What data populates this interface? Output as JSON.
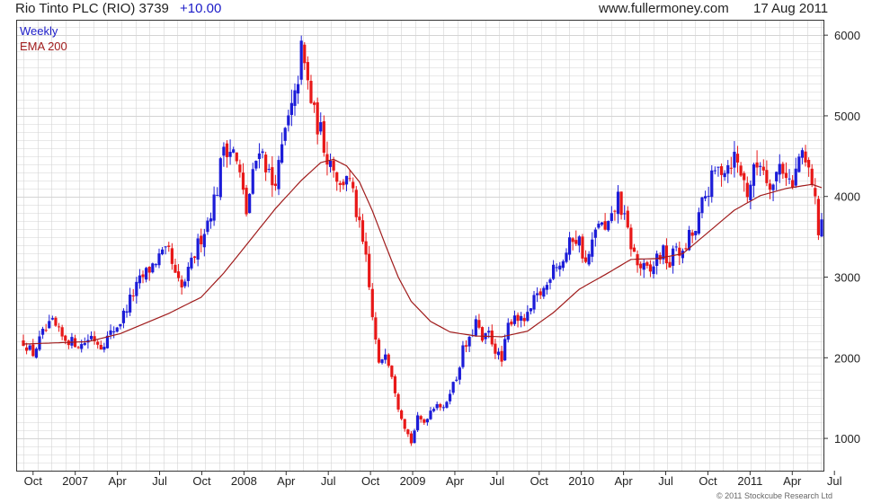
{
  "header": {
    "title": "Rio Tinto PLC (RIO) 3739",
    "change": "+10.00",
    "site": "www.fullermoney.com",
    "date": "17 Aug 2011"
  },
  "legend": {
    "weekly": "Weekly",
    "ema": "EMA 200"
  },
  "copyright": "© 2011 Stockcube Research Ltd",
  "colors": {
    "up": "#1c1cd8",
    "down": "#e81818",
    "ema": "#a01c1c",
    "grid": "#d4d4d4",
    "axis": "#333333"
  },
  "chart_data": {
    "type": "candlestick",
    "title": "Rio Tinto PLC (RIO) 3739",
    "series": [
      {
        "name": "Weekly",
        "kind": "candlestick"
      },
      {
        "name": "EMA 200",
        "kind": "line"
      }
    ],
    "y_ticks": [
      1000,
      2000,
      3000,
      4000,
      5000,
      6000
    ],
    "ylim": [
      600,
      6180
    ],
    "x_ticks": [
      "Oct",
      "2007",
      "Apr",
      "Jul",
      "Oct",
      "2008",
      "Apr",
      "Jul",
      "Oct",
      "2009",
      "Apr",
      "Jul",
      "Oct",
      "2010",
      "Apr",
      "Jul",
      "Oct",
      "2011",
      "Apr",
      "Jul"
    ],
    "grid": true,
    "legend_position": "top-left",
    "weekly_close_path": [
      [
        0,
        2200
      ],
      [
        3,
        2050
      ],
      [
        6,
        2300
      ],
      [
        9,
        2430
      ],
      [
        12,
        2250
      ],
      [
        15,
        2200
      ],
      [
        18,
        2160
      ],
      [
        21,
        2270
      ],
      [
        24,
        2150
      ],
      [
        27,
        2300
      ],
      [
        30,
        2450
      ],
      [
        33,
        2720
      ],
      [
        36,
        2950
      ],
      [
        39,
        3100
      ],
      [
        42,
        3250
      ],
      [
        45,
        3300
      ],
      [
        47,
        3000
      ],
      [
        49,
        2850
      ],
      [
        51,
        3050
      ],
      [
        54,
        3400
      ],
      [
        57,
        3700
      ],
      [
        60,
        4100
      ],
      [
        62,
        4650
      ],
      [
        65,
        4550
      ],
      [
        67,
        4250
      ],
      [
        69,
        3800
      ],
      [
        71,
        4250
      ],
      [
        73,
        4650
      ],
      [
        75,
        4400
      ],
      [
        77,
        4150
      ],
      [
        79,
        4350
      ],
      [
        81,
        4800
      ],
      [
        84,
        5200
      ],
      [
        86,
        5800
      ],
      [
        88,
        5400
      ],
      [
        90,
        5000
      ],
      [
        92,
        4800
      ],
      [
        94,
        4500
      ],
      [
        96,
        4400
      ],
      [
        98,
        4100
      ],
      [
        100,
        4300
      ],
      [
        102,
        4000
      ],
      [
        104,
        3600
      ],
      [
        106,
        3200
      ],
      [
        108,
        2500
      ],
      [
        110,
        1900
      ],
      [
        112,
        2100
      ],
      [
        114,
        1800
      ],
      [
        116,
        1400
      ],
      [
        118,
        1150
      ],
      [
        120,
        950
      ],
      [
        122,
        1250
      ],
      [
        124,
        1200
      ],
      [
        126,
        1350
      ],
      [
        128,
        1450
      ],
      [
        130,
        1350
      ],
      [
        132,
        1600
      ],
      [
        134,
        1750
      ],
      [
        136,
        2100
      ],
      [
        138,
        2200
      ],
      [
        140,
        2450
      ],
      [
        142,
        2200
      ],
      [
        144,
        2300
      ],
      [
        146,
        2100
      ],
      [
        148,
        1950
      ],
      [
        150,
        2400
      ],
      [
        152,
        2550
      ],
      [
        154,
        2450
      ],
      [
        156,
        2500
      ],
      [
        158,
        2700
      ],
      [
        160,
        2800
      ],
      [
        162,
        2900
      ],
      [
        164,
        3200
      ],
      [
        166,
        3150
      ],
      [
        168,
        3300
      ],
      [
        170,
        3500
      ],
      [
        172,
        3450
      ],
      [
        174,
        3150
      ],
      [
        176,
        3400
      ],
      [
        178,
        3700
      ],
      [
        180,
        3550
      ],
      [
        182,
        3700
      ],
      [
        184,
        4000
      ],
      [
        186,
        3700
      ],
      [
        188,
        3400
      ],
      [
        190,
        3150
      ],
      [
        192,
        3100
      ],
      [
        194,
        3050
      ],
      [
        196,
        3250
      ],
      [
        198,
        3300
      ],
      [
        200,
        3150
      ],
      [
        202,
        3400
      ],
      [
        204,
        3250
      ],
      [
        206,
        3500
      ],
      [
        208,
        3550
      ],
      [
        210,
        3900
      ],
      [
        212,
        4100
      ],
      [
        214,
        4300
      ],
      [
        216,
        4350
      ],
      [
        218,
        4400
      ],
      [
        220,
        4500
      ],
      [
        222,
        4300
      ],
      [
        224,
        4050
      ],
      [
        226,
        4300
      ],
      [
        228,
        4450
      ],
      [
        230,
        4250
      ],
      [
        232,
        4150
      ],
      [
        234,
        4400
      ],
      [
        236,
        4300
      ],
      [
        238,
        4100
      ],
      [
        240,
        4500
      ],
      [
        242,
        4400
      ],
      [
        244,
        4200
      ],
      [
        246,
        3600
      ],
      [
        247,
        3739
      ]
    ],
    "ema_path": [
      [
        0,
        2170
      ],
      [
        20,
        2200
      ],
      [
        30,
        2300
      ],
      [
        45,
        2550
      ],
      [
        55,
        2750
      ],
      [
        62,
        3050
      ],
      [
        70,
        3450
      ],
      [
        78,
        3850
      ],
      [
        86,
        4200
      ],
      [
        92,
        4420
      ],
      [
        96,
        4460
      ],
      [
        100,
        4380
      ],
      [
        104,
        4180
      ],
      [
        108,
        3820
      ],
      [
        112,
        3400
      ],
      [
        116,
        3000
      ],
      [
        120,
        2700
      ],
      [
        126,
        2450
      ],
      [
        132,
        2320
      ],
      [
        140,
        2270
      ],
      [
        148,
        2260
      ],
      [
        156,
        2330
      ],
      [
        164,
        2560
      ],
      [
        172,
        2850
      ],
      [
        180,
        3030
      ],
      [
        188,
        3220
      ],
      [
        196,
        3230
      ],
      [
        204,
        3290
      ],
      [
        212,
        3560
      ],
      [
        220,
        3830
      ],
      [
        228,
        4010
      ],
      [
        236,
        4100
      ],
      [
        244,
        4150
      ],
      [
        247,
        4110
      ]
    ]
  }
}
